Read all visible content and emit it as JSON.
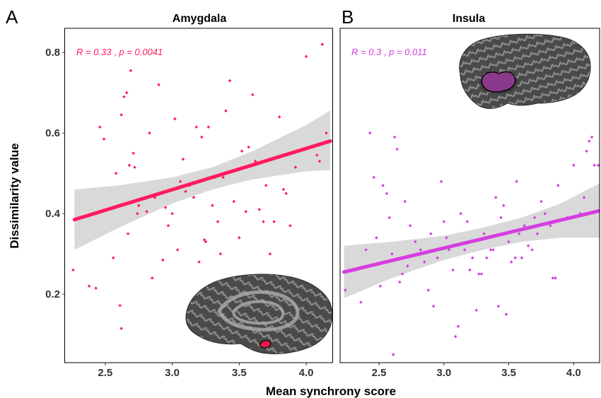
{
  "figure": {
    "xlabel": "Mean synchrony score",
    "ylabel": "Dissimilarity value"
  },
  "chart_data": [
    {
      "type": "scatter",
      "panel_letter": "A",
      "title": "Amygdala",
      "stat_r": "R = 0.33",
      "stat_p": "p = 0.0041",
      "color": "#ff1a5e",
      "band_color": "#d9d9d9",
      "region_color": "#e8174d",
      "xlim": [
        2.2,
        4.2
      ],
      "ylim": [
        0.03,
        0.86
      ],
      "xticks": [
        "2.5",
        "3.0",
        "3.5",
        "4.0"
      ],
      "yticks": [
        "0.2",
        "0.4",
        "0.6",
        "0.8"
      ],
      "xlabel": "",
      "ylabel": "Dissimilarity value",
      "fit": {
        "x": [
          2.27,
          4.18
        ],
        "y": [
          0.385,
          0.58
        ]
      },
      "ci_upper": {
        "x": [
          2.27,
          2.6,
          3.0,
          3.3,
          3.6,
          4.0,
          4.18
        ],
        "y": [
          0.46,
          0.47,
          0.49,
          0.515,
          0.555,
          0.62,
          0.656
        ]
      },
      "ci_lower": {
        "x": [
          2.27,
          2.6,
          3.0,
          3.3,
          3.6,
          4.0,
          4.18
        ],
        "y": [
          0.31,
          0.365,
          0.425,
          0.46,
          0.485,
          0.505,
          0.508
        ]
      },
      "points": [
        [
          2.26,
          0.26
        ],
        [
          2.38,
          0.22
        ],
        [
          2.43,
          0.215
        ],
        [
          2.46,
          0.615
        ],
        [
          2.49,
          0.585
        ],
        [
          2.56,
          0.29
        ],
        [
          2.58,
          0.5
        ],
        [
          2.61,
          0.172
        ],
        [
          2.62,
          0.115
        ],
        [
          2.62,
          0.645
        ],
        [
          2.64,
          0.69
        ],
        [
          2.66,
          0.7
        ],
        [
          2.67,
          0.35
        ],
        [
          2.68,
          0.52
        ],
        [
          2.69,
          0.755
        ],
        [
          2.71,
          0.55
        ],
        [
          2.72,
          0.515
        ],
        [
          2.74,
          0.4
        ],
        [
          2.75,
          0.42
        ],
        [
          2.81,
          0.405
        ],
        [
          2.83,
          0.6
        ],
        [
          2.85,
          0.24
        ],
        [
          2.87,
          0.44
        ],
        [
          2.9,
          0.72
        ],
        [
          2.93,
          0.285
        ],
        [
          2.95,
          0.415
        ],
        [
          2.97,
          0.37
        ],
        [
          3.0,
          0.4
        ],
        [
          3.02,
          0.635
        ],
        [
          3.04,
          0.31
        ],
        [
          3.06,
          0.48
        ],
        [
          3.08,
          0.535
        ],
        [
          3.1,
          0.455
        ],
        [
          3.13,
          0.47
        ],
        [
          3.16,
          0.44
        ],
        [
          3.18,
          0.615
        ],
        [
          3.2,
          0.28
        ],
        [
          3.22,
          0.59
        ],
        [
          3.24,
          0.335
        ],
        [
          3.25,
          0.33
        ],
        [
          3.27,
          0.615
        ],
        [
          3.3,
          0.42
        ],
        [
          3.32,
          0.49
        ],
        [
          3.34,
          0.38
        ],
        [
          3.36,
          0.3
        ],
        [
          3.38,
          0.49
        ],
        [
          3.4,
          0.655
        ],
        [
          3.43,
          0.73
        ],
        [
          3.46,
          0.43
        ],
        [
          3.5,
          0.34
        ],
        [
          3.52,
          0.555
        ],
        [
          3.55,
          0.405
        ],
        [
          3.57,
          0.565
        ],
        [
          3.6,
          0.695
        ],
        [
          3.62,
          0.53
        ],
        [
          3.65,
          0.41
        ],
        [
          3.68,
          0.38
        ],
        [
          3.7,
          0.47
        ],
        [
          3.73,
          0.3
        ],
        [
          3.76,
          0.38
        ],
        [
          3.8,
          0.64
        ],
        [
          3.83,
          0.46
        ],
        [
          3.85,
          0.45
        ],
        [
          3.88,
          0.37
        ],
        [
          3.92,
          0.515
        ],
        [
          4.0,
          0.79
        ],
        [
          4.08,
          0.545
        ],
        [
          4.1,
          0.53
        ],
        [
          4.12,
          0.82
        ],
        [
          4.15,
          0.6
        ]
      ]
    },
    {
      "type": "scatter",
      "panel_letter": "B",
      "title": "Insula",
      "stat_r": "R = 0.3",
      "stat_p": "p = 0.011",
      "color": "#d63de0",
      "band_color": "#d9d9d9",
      "region_color": "#8a3a8a",
      "xlim": [
        2.2,
        4.2
      ],
      "ylim": [
        0.03,
        0.86
      ],
      "xticks": [
        "2.5",
        "3.0",
        "3.5",
        "4.0"
      ],
      "yticks": [],
      "xlabel": "",
      "ylabel": "",
      "fit": {
        "x": [
          2.23,
          4.2
        ],
        "y": [
          0.255,
          0.407
        ]
      },
      "ci_upper": {
        "x": [
          2.23,
          2.6,
          3.0,
          3.3,
          3.6,
          3.9,
          4.2
        ],
        "y": [
          0.32,
          0.33,
          0.345,
          0.365,
          0.39,
          0.425,
          0.475
        ]
      },
      "ci_lower": {
        "x": [
          2.23,
          2.6,
          3.0,
          3.3,
          3.6,
          3.9,
          4.2
        ],
        "y": [
          0.19,
          0.24,
          0.285,
          0.31,
          0.33,
          0.34,
          0.34
        ]
      },
      "points": [
        [
          2.24,
          0.21
        ],
        [
          2.32,
          0.26
        ],
        [
          2.36,
          0.18
        ],
        [
          2.4,
          0.31
        ],
        [
          2.43,
          0.6
        ],
        [
          2.46,
          0.49
        ],
        [
          2.48,
          0.34
        ],
        [
          2.51,
          0.22
        ],
        [
          2.53,
          0.47
        ],
        [
          2.56,
          0.45
        ],
        [
          2.58,
          0.39
        ],
        [
          2.6,
          0.3
        ],
        [
          2.61,
          0.05
        ],
        [
          2.62,
          0.59
        ],
        [
          2.64,
          0.56
        ],
        [
          2.66,
          0.23
        ],
        [
          2.68,
          0.25
        ],
        [
          2.7,
          0.43
        ],
        [
          2.72,
          0.27
        ],
        [
          2.74,
          0.37
        ],
        [
          2.78,
          0.33
        ],
        [
          2.82,
          0.31
        ],
        [
          2.85,
          0.28
        ],
        [
          2.88,
          0.21
        ],
        [
          2.9,
          0.35
        ],
        [
          2.92,
          0.17
        ],
        [
          2.95,
          0.29
        ],
        [
          2.98,
          0.48
        ],
        [
          3.0,
          0.38
        ],
        [
          3.02,
          0.34
        ],
        [
          3.04,
          0.31
        ],
        [
          3.07,
          0.26
        ],
        [
          3.09,
          0.095
        ],
        [
          3.11,
          0.12
        ],
        [
          3.13,
          0.4
        ],
        [
          3.16,
          0.31
        ],
        [
          3.18,
          0.38
        ],
        [
          3.2,
          0.26
        ],
        [
          3.22,
          0.29
        ],
        [
          3.25,
          0.16
        ],
        [
          3.27,
          0.25
        ],
        [
          3.29,
          0.25
        ],
        [
          3.31,
          0.35
        ],
        [
          3.33,
          0.29
        ],
        [
          3.36,
          0.31
        ],
        [
          3.38,
          0.31
        ],
        [
          3.4,
          0.44
        ],
        [
          3.42,
          0.17
        ],
        [
          3.44,
          0.39
        ],
        [
          3.46,
          0.42
        ],
        [
          3.48,
          0.15
        ],
        [
          3.5,
          0.33
        ],
        [
          3.52,
          0.28
        ],
        [
          3.55,
          0.29
        ],
        [
          3.56,
          0.48
        ],
        [
          3.58,
          0.35
        ],
        [
          3.6,
          0.29
        ],
        [
          3.62,
          0.37
        ],
        [
          3.65,
          0.32
        ],
        [
          3.68,
          0.31
        ],
        [
          3.7,
          0.39
        ],
        [
          3.72,
          0.35
        ],
        [
          3.75,
          0.43
        ],
        [
          3.78,
          0.4
        ],
        [
          3.82,
          0.37
        ],
        [
          3.84,
          0.24
        ],
        [
          3.86,
          0.24
        ],
        [
          3.88,
          0.47
        ],
        [
          3.95,
          0.39
        ],
        [
          4.0,
          0.52
        ],
        [
          4.05,
          0.4
        ],
        [
          4.08,
          0.44
        ],
        [
          4.1,
          0.555
        ],
        [
          4.12,
          0.58
        ],
        [
          4.14,
          0.59
        ],
        [
          4.16,
          0.52
        ],
        [
          4.19,
          0.52
        ]
      ]
    }
  ]
}
